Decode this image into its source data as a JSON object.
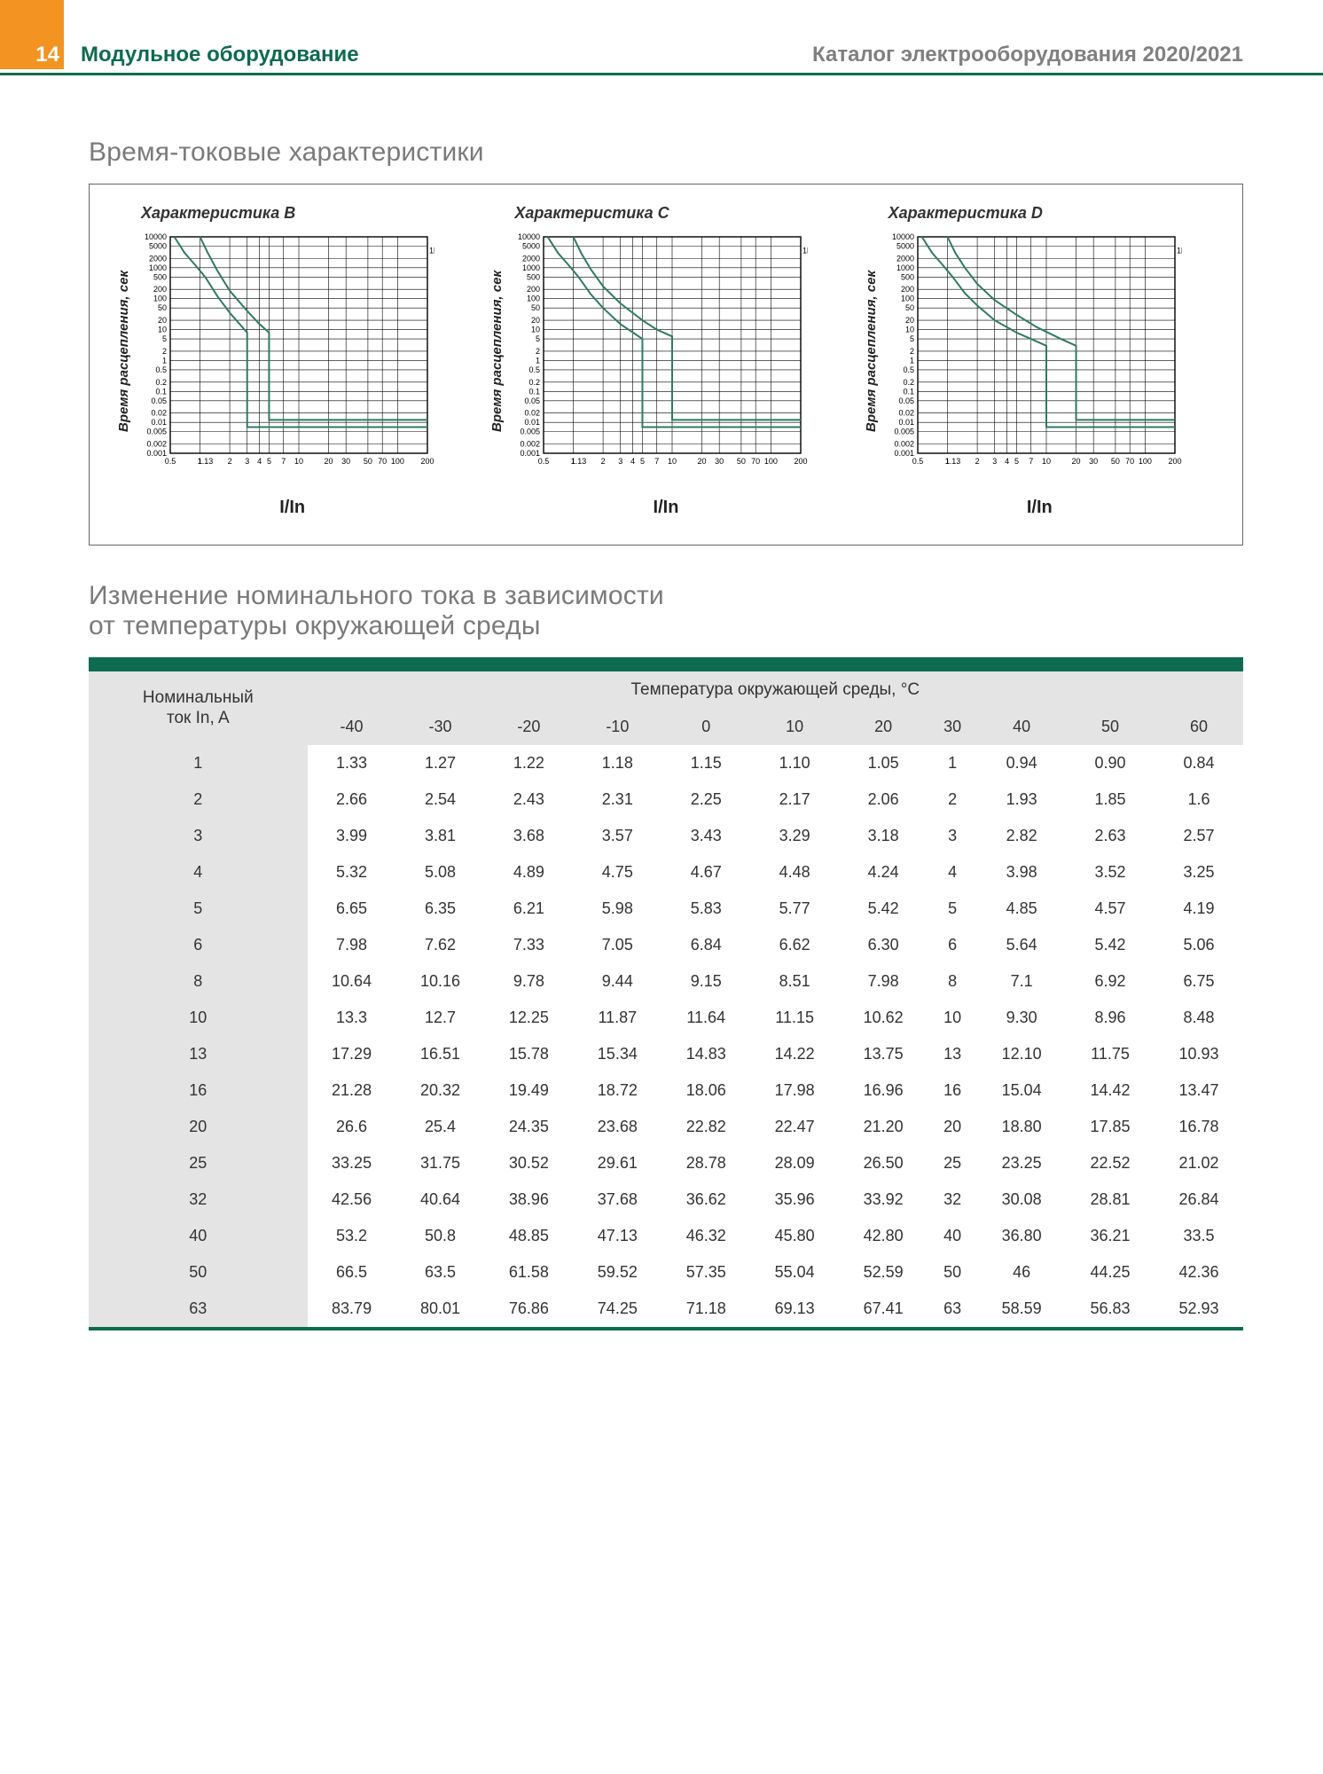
{
  "header": {
    "page_number": "14",
    "left_title": "Модульное оборудование",
    "right_title": "Каталог электрооборудования 2020/2021"
  },
  "colors": {
    "accent_green": "#0e6b4f",
    "orange": "#f39322",
    "grid": "#000000",
    "curve": "#2f7a63",
    "table_header_bg": "#e4e4e4"
  },
  "charts_section": {
    "title": "Время-токовые характеристики",
    "ylabel": "Время расцепления, сек",
    "xlabel": "I/In",
    "y_ticks": [
      "10000",
      "5000",
      "2000",
      "1000",
      "500",
      "200",
      "100",
      "50",
      "20",
      "10",
      "5",
      "2",
      "1",
      "0.5",
      "0.2",
      "0.1",
      "0.05",
      "0.02",
      "0.01",
      "0.005",
      "0.002",
      "0.001"
    ],
    "y_side_label": "1h",
    "x_ticks_full": [
      "0.5",
      "1",
      "1.13",
      "2",
      "3",
      "4",
      "5",
      "7",
      "10",
      "20",
      "30",
      "50",
      "70",
      "100",
      "200"
    ],
    "charts": [
      {
        "title": "Характеристика B",
        "trip_lo": 3,
        "trip_hi": 5,
        "curves": [
          {
            "drop_x": 3,
            "points_upper": [
              [
                0.55,
                10000
              ],
              [
                0.7,
                3000
              ],
              [
                0.9,
                1200
              ],
              [
                1.13,
                500
              ],
              [
                1.5,
                120
              ],
              [
                2,
                35
              ],
              [
                3,
                8
              ]
            ],
            "tail_y": 0.007
          },
          {
            "drop_x": 5,
            "points_upper": [
              [
                1.0,
                10000
              ],
              [
                1.2,
                3000
              ],
              [
                1.5,
                800
              ],
              [
                2,
                180
              ],
              [
                3,
                40
              ],
              [
                4,
                15
              ],
              [
                5,
                8
              ]
            ],
            "tail_y": 0.012
          }
        ]
      },
      {
        "title": "Характеристика C",
        "trip_lo": 5,
        "trip_hi": 10,
        "curves": [
          {
            "drop_x": 5,
            "points_upper": [
              [
                0.55,
                10000
              ],
              [
                0.7,
                3000
              ],
              [
                0.9,
                1200
              ],
              [
                1.13,
                500
              ],
              [
                1.5,
                140
              ],
              [
                2,
                50
              ],
              [
                3,
                15
              ],
              [
                5,
                5
              ]
            ],
            "tail_y": 0.007
          },
          {
            "drop_x": 10,
            "points_upper": [
              [
                1.0,
                10000
              ],
              [
                1.2,
                3000
              ],
              [
                1.5,
                900
              ],
              [
                2,
                250
              ],
              [
                3,
                70
              ],
              [
                5,
                20
              ],
              [
                7,
                10
              ],
              [
                10,
                6
              ]
            ],
            "tail_y": 0.012
          }
        ]
      },
      {
        "title": "Характеристика D",
        "trip_lo": 10,
        "trip_hi": 20,
        "curves": [
          {
            "drop_x": 10,
            "points_upper": [
              [
                0.55,
                10000
              ],
              [
                0.7,
                3000
              ],
              [
                0.9,
                1200
              ],
              [
                1.13,
                500
              ],
              [
                1.5,
                150
              ],
              [
                2,
                60
              ],
              [
                3,
                20
              ],
              [
                5,
                8
              ],
              [
                10,
                3
              ]
            ],
            "tail_y": 0.007
          },
          {
            "drop_x": 20,
            "points_upper": [
              [
                1.0,
                10000
              ],
              [
                1.2,
                3000
              ],
              [
                1.5,
                1000
              ],
              [
                2,
                300
              ],
              [
                3,
                90
              ],
              [
                5,
                30
              ],
              [
                8,
                12
              ],
              [
                14,
                5
              ],
              [
                20,
                3
              ]
            ],
            "tail_y": 0.012
          }
        ]
      }
    ]
  },
  "temp_section": {
    "title_line1": "Изменение номинального тока в зависимости",
    "title_line2": "от температуры окружающей среды",
    "super_header": "Температура окружающей среды, °C",
    "row_header": "Номинальный\nток In, A",
    "temp_cols": [
      "-40",
      "-30",
      "-20",
      "-10",
      "0",
      "10",
      "20",
      "30",
      "40",
      "50",
      "60"
    ],
    "rows": [
      {
        "label": "1",
        "vals": [
          "1.33",
          "1.27",
          "1.22",
          "1.18",
          "1.15",
          "1.10",
          "1.05",
          "1",
          "0.94",
          "0.90",
          "0.84"
        ]
      },
      {
        "label": "2",
        "vals": [
          "2.66",
          "2.54",
          "2.43",
          "2.31",
          "2.25",
          "2.17",
          "2.06",
          "2",
          "1.93",
          "1.85",
          "1.6"
        ]
      },
      {
        "label": "3",
        "vals": [
          "3.99",
          "3.81",
          "3.68",
          "3.57",
          "3.43",
          "3.29",
          "3.18",
          "3",
          "2.82",
          "2.63",
          "2.57"
        ]
      },
      {
        "label": "4",
        "vals": [
          "5.32",
          "5.08",
          "4.89",
          "4.75",
          "4.67",
          "4.48",
          "4.24",
          "4",
          "3.98",
          "3.52",
          "3.25"
        ]
      },
      {
        "label": "5",
        "vals": [
          "6.65",
          "6.35",
          "6.21",
          "5.98",
          "5.83",
          "5.77",
          "5.42",
          "5",
          "4.85",
          "4.57",
          "4.19"
        ]
      },
      {
        "label": "6",
        "vals": [
          "7.98",
          "7.62",
          "7.33",
          "7.05",
          "6.84",
          "6.62",
          "6.30",
          "6",
          "5.64",
          "5.42",
          "5.06"
        ]
      },
      {
        "label": "8",
        "vals": [
          "10.64",
          "10.16",
          "9.78",
          "9.44",
          "9.15",
          "8.51",
          "7.98",
          "8",
          "7.1",
          "6.92",
          "6.75"
        ]
      },
      {
        "label": "10",
        "vals": [
          "13.3",
          "12.7",
          "12.25",
          "11.87",
          "11.64",
          "11.15",
          "10.62",
          "10",
          "9.30",
          "8.96",
          "8.48"
        ]
      },
      {
        "label": "13",
        "vals": [
          "17.29",
          "16.51",
          "15.78",
          "15.34",
          "14.83",
          "14.22",
          "13.75",
          "13",
          "12.10",
          "11.75",
          "10.93"
        ]
      },
      {
        "label": "16",
        "vals": [
          "21.28",
          "20.32",
          "19.49",
          "18.72",
          "18.06",
          "17.98",
          "16.96",
          "16",
          "15.04",
          "14.42",
          "13.47"
        ]
      },
      {
        "label": "20",
        "vals": [
          "26.6",
          "25.4",
          "24.35",
          "23.68",
          "22.82",
          "22.47",
          "21.20",
          "20",
          "18.80",
          "17.85",
          "16.78"
        ]
      },
      {
        "label": "25",
        "vals": [
          "33.25",
          "31.75",
          "30.52",
          "29.61",
          "28.78",
          "28.09",
          "26.50",
          "25",
          "23.25",
          "22.52",
          "21.02"
        ]
      },
      {
        "label": "32",
        "vals": [
          "42.56",
          "40.64",
          "38.96",
          "37.68",
          "36.62",
          "35.96",
          "33.92",
          "32",
          "30.08",
          "28.81",
          "26.84"
        ]
      },
      {
        "label": "40",
        "vals": [
          "53.2",
          "50.8",
          "48.85",
          "47.13",
          "46.32",
          "45.80",
          "42.80",
          "40",
          "36.80",
          "36.21",
          "33.5"
        ]
      },
      {
        "label": "50",
        "vals": [
          "66.5",
          "63.5",
          "61.58",
          "59.52",
          "57.35",
          "55.04",
          "52.59",
          "50",
          "46",
          "44.25",
          "42.36"
        ]
      },
      {
        "label": "63",
        "vals": [
          "83.79",
          "80.01",
          "76.86",
          "74.25",
          "71.18",
          "69.13",
          "67.41",
          "63",
          "58.59",
          "56.83",
          "52.93"
        ]
      }
    ]
  }
}
